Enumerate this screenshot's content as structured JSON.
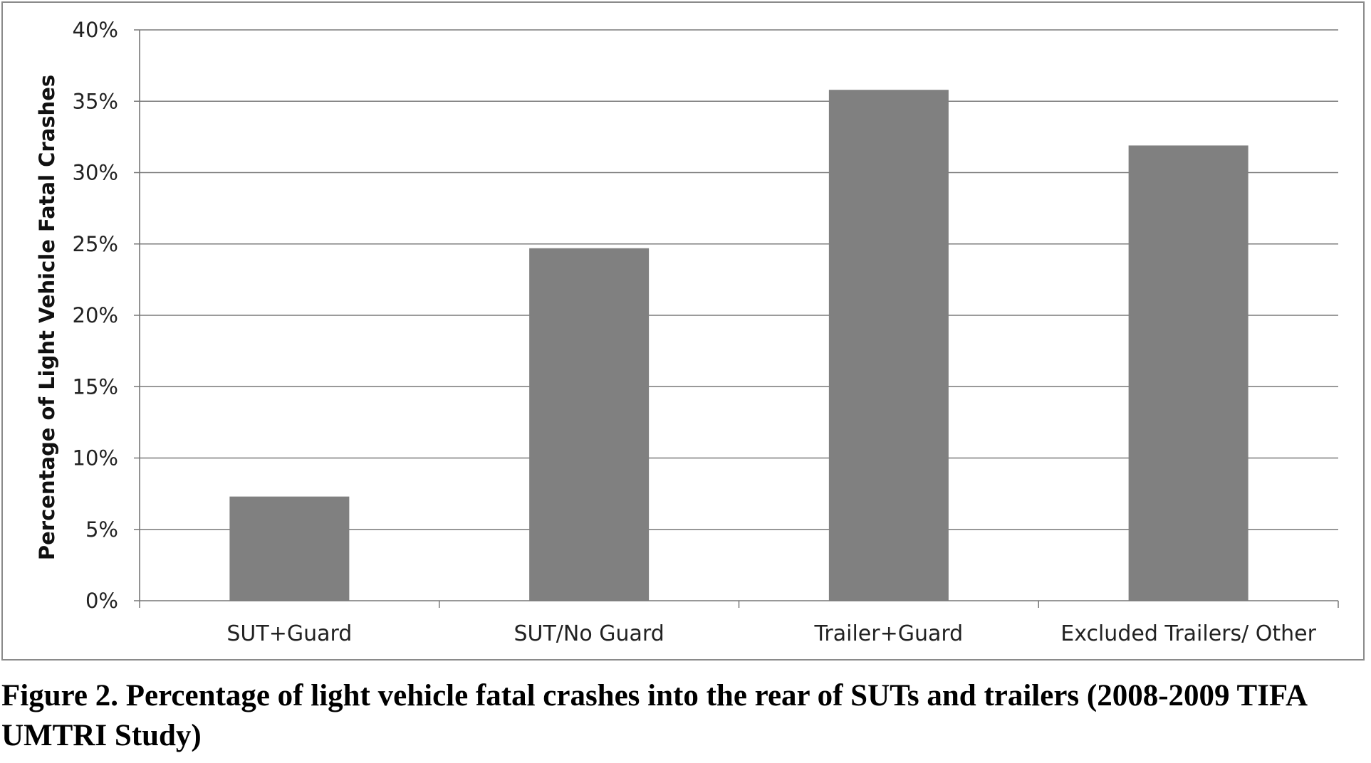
{
  "caption": "Figure 2.  Percentage of light vehicle fatal crashes into the rear of SUTs and trailers (2008-2009 TIFA UMTRI Study)",
  "chart_data": {
    "type": "bar",
    "categories": [
      "SUT+Guard",
      "SUT/No Guard",
      "Trailer+Guard",
      "Excluded Trailers/ Other"
    ],
    "values": [
      7.3,
      24.7,
      35.8,
      31.9
    ],
    "value_unit": "%",
    "ylabel": "Percentage  of Light Vehicle  Fatal Crashes",
    "xlabel": "",
    "ylim": [
      0,
      40
    ],
    "yticks": [
      "0%",
      "5%",
      "10%",
      "15%",
      "20%",
      "25%",
      "30%",
      "35%",
      "40%"
    ],
    "grid": true,
    "legend": "none",
    "bar_color": "#808080",
    "grid_color": "#7a7a7a"
  }
}
